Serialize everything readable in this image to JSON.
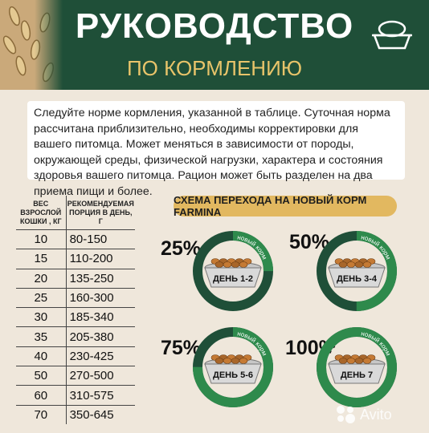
{
  "header": {
    "title": "РУКОВОДСТВО",
    "subtitle": "ПО КОРМЛЕНИЮ"
  },
  "intro": "Следуйте норме кормления, указанной в таблице. Суточная норма рассчитана приблизительно, необходимы корректировки для вашего питомца. Может меняться в зависимости от породы, окружающей среды, физической нагрузки, характера и состояния здоровья вашего питомца. Рацион может быть разделен на два приема пищи и более.",
  "table": {
    "headers": [
      "ВЕС ВЗРОСЛОЙ КОШКИ , КГ",
      "РЕКОМЕНДУЕМАЯ ПОРЦИЯ В ДЕНЬ, Г"
    ],
    "rows": [
      [
        "10",
        "80-150"
      ],
      [
        "15",
        "110-200"
      ],
      [
        "20",
        "135-250"
      ],
      [
        "25",
        "160-300"
      ],
      [
        "30",
        "185-340"
      ],
      [
        "35",
        "205-380"
      ],
      [
        "40",
        "230-425"
      ],
      [
        "50",
        "270-500"
      ],
      [
        "60",
        "310-575"
      ],
      [
        "70",
        "350-645"
      ]
    ]
  },
  "transition": {
    "title": "СХЕМА ПЕРЕХОДА НА НОВЫЙ КОРМ FARMINA",
    "ring_label": "новый корм",
    "stages": [
      {
        "percent": "25%",
        "fraction": 0.25,
        "day": "ДЕНЬ 1-2"
      },
      {
        "percent": "50%",
        "fraction": 0.5,
        "day": "ДЕНЬ 3-4"
      },
      {
        "percent": "75%",
        "fraction": 0.75,
        "day": "ДЕНЬ 5-6"
      },
      {
        "percent": "100%",
        "fraction": 1.0,
        "day": "ДЕНЬ 7"
      }
    ]
  },
  "colors": {
    "header_bg": "#1f4f38",
    "accent_gold": "#e2b860",
    "ring_green": "#2e8a4c",
    "ring_dark": "#1f4f38",
    "page_bg": "#efe7db"
  },
  "icons": [
    "wheat-icon",
    "bowl-icon",
    "avito-logo"
  ]
}
